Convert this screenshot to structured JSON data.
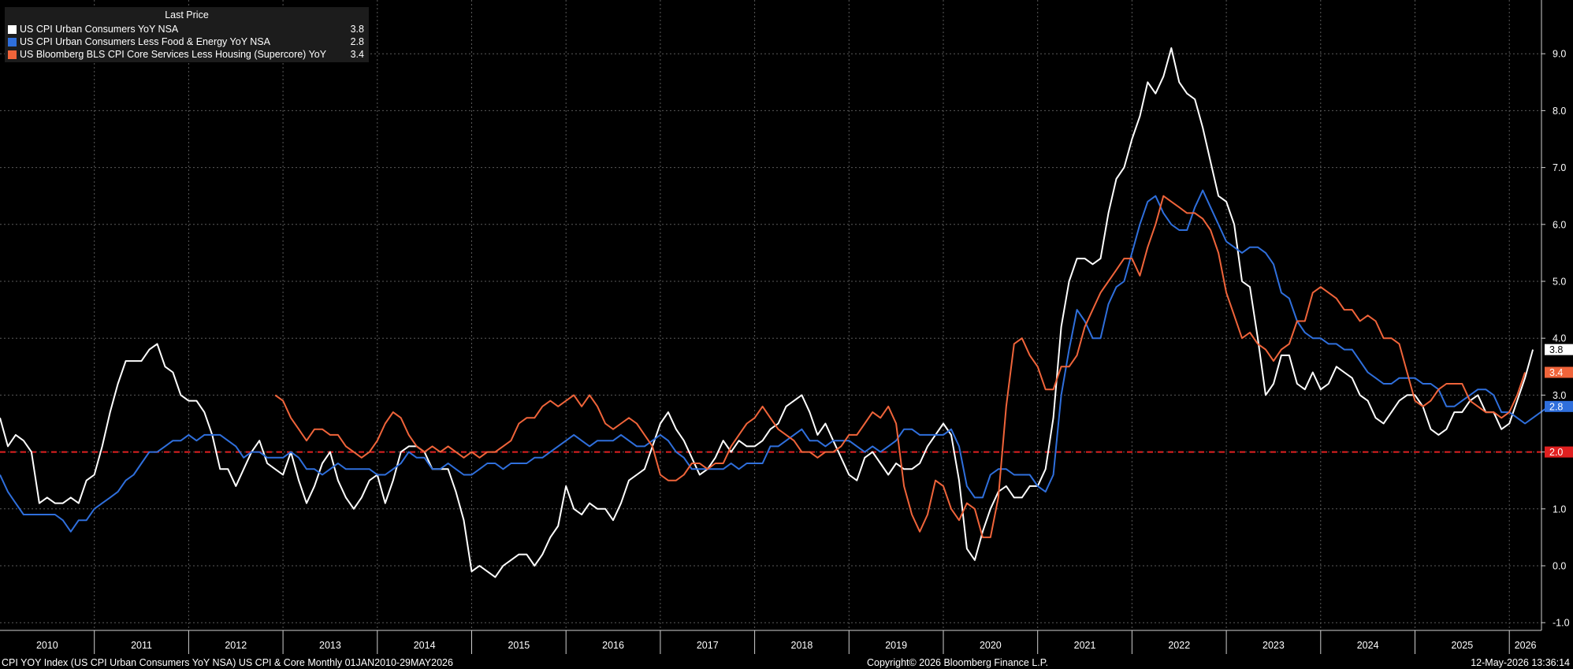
{
  "legend": {
    "header": "Last Price",
    "items": [
      {
        "name": "US CPI Urban Consumers YoY NSA",
        "value": "3.8",
        "color": "#ffffff"
      },
      {
        "name": "US CPI Urban Consumers Less Food & Energy YoY NSA",
        "value": "2.8",
        "color": "#2f6fdc"
      },
      {
        "name": "US Bloomberg BLS CPI Core Services Less Housing (Supercore) YoY",
        "value": "3.4",
        "color": "#f0643a"
      }
    ]
  },
  "footer": {
    "left": "CPI YOY Index (US CPI Urban Consumers YoY NSA) US CPI & Core Monthly 01JAN2010-29MAY2026",
    "center": "Copyright© 2026 Bloomberg Finance L.P.",
    "right": "12-May-2026 13:36:14"
  },
  "chart_data": {
    "type": "line",
    "x_start": "2010-01",
    "x_end": "2026-05",
    "x_frequency": "monthly",
    "x_tick_labels": [
      "2010",
      "2011",
      "2012",
      "2013",
      "2014",
      "2015",
      "2016",
      "2017",
      "2018",
      "2019",
      "2020",
      "2021",
      "2022",
      "2023",
      "2024",
      "2025",
      "2026"
    ],
    "ylim": [
      -1.0,
      9.5
    ],
    "y_ticks": [
      -1.0,
      0.0,
      1.0,
      2.0,
      3.0,
      4.0,
      5.0,
      6.0,
      7.0,
      8.0,
      9.0
    ],
    "y_axis_side": "right",
    "grid": true,
    "legend_position": "top-left",
    "reference_line": {
      "value": 2.0,
      "label": "2.0",
      "color": "#e02020",
      "style": "dashed"
    },
    "last_value_tags": [
      {
        "value": 3.8,
        "label": "3.8",
        "bg": "#ffffff",
        "fg": "#000000"
      },
      {
        "value": 3.4,
        "label": "3.4",
        "bg": "#f0643a",
        "fg": "#ffffff"
      },
      {
        "value": 2.8,
        "label": "2.8",
        "bg": "#2f6fdc",
        "fg": "#ffffff"
      }
    ],
    "series": [
      {
        "name": "US CPI Urban Consumers YoY NSA",
        "color": "#ffffff",
        "start": "2010-01",
        "values": [
          2.6,
          2.1,
          2.3,
          2.2,
          2.0,
          1.1,
          1.2,
          1.1,
          1.1,
          1.2,
          1.1,
          1.5,
          1.6,
          2.1,
          2.7,
          3.2,
          3.6,
          3.6,
          3.6,
          3.8,
          3.9,
          3.5,
          3.4,
          3.0,
          2.9,
          2.9,
          2.7,
          2.3,
          1.7,
          1.7,
          1.4,
          1.7,
          2.0,
          2.2,
          1.8,
          1.7,
          1.6,
          2.0,
          1.5,
          1.1,
          1.4,
          1.8,
          2.0,
          1.5,
          1.2,
          1.0,
          1.2,
          1.5,
          1.6,
          1.1,
          1.5,
          2.0,
          2.1,
          2.1,
          2.0,
          1.7,
          1.7,
          1.7,
          1.3,
          0.8,
          -0.1,
          0.0,
          -0.1,
          -0.2,
          0.0,
          0.1,
          0.2,
          0.2,
          0.0,
          0.2,
          0.5,
          0.7,
          1.4,
          1.0,
          0.9,
          1.1,
          1.0,
          1.0,
          0.8,
          1.1,
          1.5,
          1.6,
          1.7,
          2.1,
          2.5,
          2.7,
          2.4,
          2.2,
          1.9,
          1.6,
          1.7,
          1.9,
          2.2,
          2.0,
          2.2,
          2.1,
          2.1,
          2.2,
          2.4,
          2.5,
          2.8,
          2.9,
          3.0,
          2.7,
          2.3,
          2.5,
          2.2,
          1.9,
          1.6,
          1.5,
          1.9,
          2.0,
          1.8,
          1.6,
          1.8,
          1.7,
          1.7,
          1.8,
          2.1,
          2.3,
          2.5,
          2.3,
          1.5,
          0.3,
          0.1,
          0.6,
          1.0,
          1.3,
          1.4,
          1.2,
          1.2,
          1.4,
          1.4,
          1.7,
          2.6,
          4.2,
          5.0,
          5.4,
          5.4,
          5.3,
          5.4,
          6.2,
          6.8,
          7.0,
          7.5,
          7.9,
          8.5,
          8.3,
          8.6,
          9.1,
          8.5,
          8.3,
          8.2,
          7.7,
          7.1,
          6.5,
          6.4,
          6.0,
          5.0,
          4.9,
          4.0,
          3.0,
          3.2,
          3.7,
          3.7,
          3.2,
          3.1,
          3.4,
          3.1,
          3.2,
          3.5,
          3.4,
          3.3,
          3.0,
          2.9,
          2.6,
          2.5,
          2.7,
          2.9,
          3.0,
          3.0,
          2.8,
          2.4,
          2.3,
          2.4,
          2.7,
          2.7,
          2.9,
          3.0,
          2.7,
          2.7,
          2.4,
          2.5,
          2.9,
          3.3,
          3.8
        ]
      },
      {
        "name": "US CPI Urban Consumers Less Food & Energy YoY NSA",
        "color": "#2f6fdc",
        "start": "2010-01",
        "values": [
          1.6,
          1.3,
          1.1,
          0.9,
          0.9,
          0.9,
          0.9,
          0.9,
          0.8,
          0.6,
          0.8,
          0.8,
          1.0,
          1.1,
          1.2,
          1.3,
          1.5,
          1.6,
          1.8,
          2.0,
          2.0,
          2.1,
          2.2,
          2.2,
          2.3,
          2.2,
          2.3,
          2.3,
          2.3,
          2.2,
          2.1,
          1.9,
          2.0,
          2.0,
          1.9,
          1.9,
          1.9,
          2.0,
          1.9,
          1.7,
          1.7,
          1.6,
          1.7,
          1.8,
          1.7,
          1.7,
          1.7,
          1.7,
          1.6,
          1.6,
          1.7,
          1.8,
          2.0,
          1.9,
          1.9,
          1.7,
          1.7,
          1.8,
          1.7,
          1.6,
          1.6,
          1.7,
          1.8,
          1.8,
          1.7,
          1.8,
          1.8,
          1.8,
          1.9,
          1.9,
          2.0,
          2.1,
          2.2,
          2.3,
          2.2,
          2.1,
          2.2,
          2.2,
          2.2,
          2.3,
          2.2,
          2.1,
          2.1,
          2.2,
          2.3,
          2.2,
          2.0,
          1.9,
          1.7,
          1.7,
          1.7,
          1.7,
          1.7,
          1.8,
          1.7,
          1.8,
          1.8,
          1.8,
          2.1,
          2.1,
          2.2,
          2.3,
          2.4,
          2.2,
          2.2,
          2.1,
          2.2,
          2.2,
          2.2,
          2.1,
          2.0,
          2.1,
          2.0,
          2.1,
          2.2,
          2.4,
          2.4,
          2.3,
          2.3,
          2.3,
          2.3,
          2.4,
          2.1,
          1.4,
          1.2,
          1.2,
          1.6,
          1.7,
          1.7,
          1.6,
          1.6,
          1.6,
          1.4,
          1.3,
          1.6,
          3.0,
          3.8,
          4.5,
          4.3,
          4.0,
          4.0,
          4.6,
          4.9,
          5.0,
          5.5,
          6.0,
          6.4,
          6.5,
          6.2,
          6.0,
          5.9,
          5.9,
          6.3,
          6.6,
          6.3,
          6.0,
          5.7,
          5.6,
          5.5,
          5.6,
          5.6,
          5.5,
          5.3,
          4.8,
          4.7,
          4.3,
          4.1,
          4.0,
          4.0,
          3.9,
          3.9,
          3.8,
          3.8,
          3.6,
          3.4,
          3.3,
          3.2,
          3.2,
          3.3,
          3.3,
          3.3,
          3.2,
          3.2,
          3.1,
          2.8,
          2.8,
          2.9,
          3.0,
          3.1,
          3.1,
          3.0,
          2.7,
          2.7,
          2.6,
          2.5,
          2.6,
          2.7,
          2.8
        ]
      },
      {
        "name": "US Bloomberg BLS CPI Core Services Less Housing (Supercore) YoY",
        "color": "#f0643a",
        "start": "2012-12",
        "values": [
          3.0,
          2.9,
          2.6,
          2.4,
          2.2,
          2.4,
          2.4,
          2.3,
          2.3,
          2.1,
          2.0,
          1.9,
          2.0,
          2.2,
          2.5,
          2.7,
          2.6,
          2.3,
          2.1,
          2.0,
          2.1,
          2.0,
          2.1,
          2.0,
          1.9,
          2.0,
          1.9,
          2.0,
          2.0,
          2.1,
          2.2,
          2.5,
          2.6,
          2.6,
          2.8,
          2.9,
          2.8,
          2.9,
          3.0,
          2.8,
          3.0,
          2.8,
          2.5,
          2.4,
          2.5,
          2.6,
          2.5,
          2.3,
          2.1,
          1.6,
          1.5,
          1.5,
          1.6,
          1.8,
          1.8,
          1.7,
          1.8,
          1.8,
          2.1,
          2.3,
          2.5,
          2.6,
          2.8,
          2.6,
          2.4,
          2.3,
          2.2,
          2.0,
          2.0,
          1.9,
          2.0,
          2.0,
          2.1,
          2.3,
          2.3,
          2.5,
          2.7,
          2.6,
          2.8,
          2.5,
          1.4,
          0.9,
          0.6,
          0.9,
          1.5,
          1.4,
          1.0,
          0.8,
          1.1,
          1.0,
          0.5,
          0.5,
          1.2,
          2.8,
          3.9,
          4.0,
          3.7,
          3.5,
          3.1,
          3.1,
          3.5,
          3.5,
          3.7,
          4.2,
          4.5,
          4.8,
          5.0,
          5.2,
          5.4,
          5.4,
          5.1,
          5.6,
          6.0,
          6.5,
          6.4,
          6.3,
          6.2,
          6.2,
          6.1,
          5.9,
          5.5,
          4.8,
          4.4,
          4.0,
          4.1,
          3.9,
          3.8,
          3.6,
          3.8,
          3.9,
          4.3,
          4.3,
          4.8,
          4.9,
          4.8,
          4.7,
          4.5,
          4.5,
          4.3,
          4.4,
          4.3,
          4.0,
          4.0,
          3.9,
          3.4,
          2.9,
          2.8,
          2.9,
          3.1,
          3.2,
          3.2,
          3.2,
          2.9,
          2.8,
          2.7,
          2.7,
          2.6,
          2.7,
          3.0,
          3.4
        ]
      }
    ]
  }
}
